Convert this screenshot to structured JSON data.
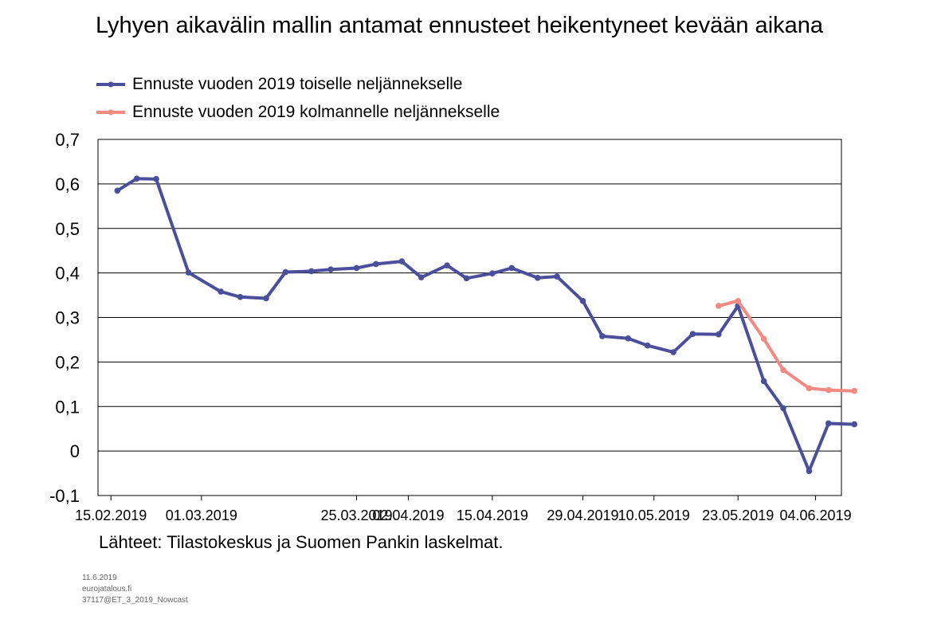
{
  "chart_data": {
    "type": "line",
    "title": "Lyhyen aikavälin mallin antamat ennusteet heikentyneet kevään aikana",
    "xlabel": "",
    "ylabel": "",
    "ylim": [
      -0.1,
      0.7
    ],
    "yticks": [
      "-0,1",
      "0",
      "0,1",
      "0,2",
      "0,3",
      "0,4",
      "0,5",
      "0,6",
      "0,7"
    ],
    "xlim": [
      "2019-02-13",
      "2019-06-08"
    ],
    "xticks": [
      {
        "date": "2019-02-15",
        "label": "15.02.2019"
      },
      {
        "date": "2019-03-01",
        "label": "01.03.2019"
      },
      {
        "date": "2019-03-25",
        "label": "25.03.2019"
      },
      {
        "date": "2019-04-02",
        "label": "02.04.2019"
      },
      {
        "date": "2019-04-15",
        "label": "15.04.2019"
      },
      {
        "date": "2019-04-29",
        "label": "29.04.2019"
      },
      {
        "date": "2019-05-10",
        "label": "10.05.2019"
      },
      {
        "date": "2019-05-23",
        "label": "23.05.2019"
      },
      {
        "date": "2019-06-04",
        "label": "04.06.2019"
      }
    ],
    "grid": {
      "horizontal": true,
      "vertical": false
    },
    "legend_position": "top-left",
    "series": [
      {
        "name": "Ennuste vuoden 2019 toiselle neljännekselle",
        "color": "#4b4f9b",
        "points": [
          {
            "x": "2019-02-16",
            "y": 0.585
          },
          {
            "x": "2019-02-19",
            "y": 0.612
          },
          {
            "x": "2019-02-22",
            "y": 0.611
          },
          {
            "x": "2019-02-27",
            "y": 0.401
          },
          {
            "x": "2019-03-04",
            "y": 0.358
          },
          {
            "x": "2019-03-07",
            "y": 0.346
          },
          {
            "x": "2019-03-11",
            "y": 0.343
          },
          {
            "x": "2019-03-14",
            "y": 0.402
          },
          {
            "x": "2019-03-18",
            "y": 0.404
          },
          {
            "x": "2019-03-21",
            "y": 0.408
          },
          {
            "x": "2019-03-25",
            "y": 0.411
          },
          {
            "x": "2019-03-28",
            "y": 0.42
          },
          {
            "x": "2019-04-01",
            "y": 0.426
          },
          {
            "x": "2019-04-04",
            "y": 0.39
          },
          {
            "x": "2019-04-08",
            "y": 0.417
          },
          {
            "x": "2019-04-11",
            "y": 0.388
          },
          {
            "x": "2019-04-15",
            "y": 0.399
          },
          {
            "x": "2019-04-18",
            "y": 0.411
          },
          {
            "x": "2019-04-22",
            "y": 0.389
          },
          {
            "x": "2019-04-25",
            "y": 0.392
          },
          {
            "x": "2019-04-29",
            "y": 0.337
          },
          {
            "x": "2019-05-02",
            "y": 0.258
          },
          {
            "x": "2019-05-06",
            "y": 0.253
          },
          {
            "x": "2019-05-09",
            "y": 0.237
          },
          {
            "x": "2019-05-13",
            "y": 0.222
          },
          {
            "x": "2019-05-16",
            "y": 0.263
          },
          {
            "x": "2019-05-20",
            "y": 0.262
          },
          {
            "x": "2019-05-23",
            "y": 0.326
          },
          {
            "x": "2019-05-27",
            "y": 0.157
          },
          {
            "x": "2019-05-30",
            "y": 0.096
          },
          {
            "x": "2019-06-03",
            "y": -0.045
          },
          {
            "x": "2019-06-06",
            "y": 0.062
          },
          {
            "x": "2019-06-10",
            "y": 0.06
          }
        ]
      },
      {
        "name": "Ennuste vuoden 2019 kolmannelle neljännekselle",
        "color": "#f28a82",
        "points": [
          {
            "x": "2019-05-20",
            "y": 0.326
          },
          {
            "x": "2019-05-23",
            "y": 0.337
          },
          {
            "x": "2019-05-27",
            "y": 0.252
          },
          {
            "x": "2019-05-30",
            "y": 0.182
          },
          {
            "x": "2019-06-03",
            "y": 0.141
          },
          {
            "x": "2019-06-06",
            "y": 0.137
          },
          {
            "x": "2019-06-10",
            "y": 0.135
          }
        ]
      }
    ]
  },
  "source_note": "Lähteet: Tilastokeskus ja Suomen Pankin laskelmat.",
  "footer": [
    "11.6.2019",
    "eurojatalous.fi",
    "37117@ET_3_2019_Nowcast"
  ]
}
